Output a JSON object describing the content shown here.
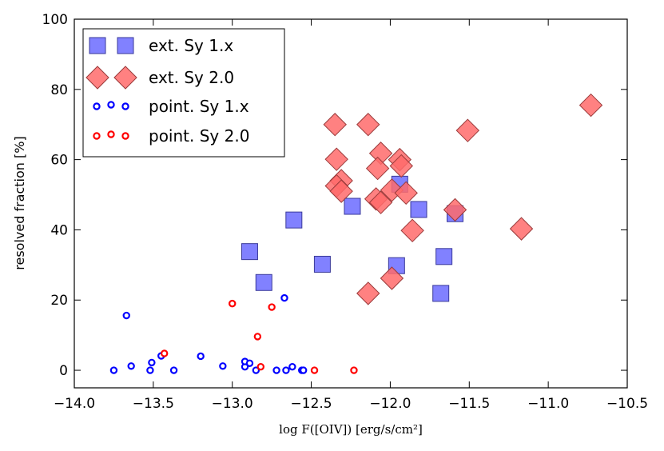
{
  "chart_data": {
    "type": "scatter",
    "xlabel": "log F([OIV]) [erg/s/cm²]",
    "ylabel": "resolved fraction [%]",
    "xlim": [
      -14.0,
      -10.5
    ],
    "ylim": [
      -5,
      100
    ],
    "xticks": [
      -14.0,
      -13.5,
      -13.0,
      -12.5,
      -12.0,
      -11.5,
      -11.0,
      -10.5
    ],
    "xtick_labels": [
      "−14.0",
      "−13.5",
      "−13.0",
      "−12.5",
      "−12.0",
      "−11.5",
      "−11.0",
      "−10.5"
    ],
    "yticks": [
      0,
      20,
      40,
      60,
      80,
      100
    ],
    "ytick_labels": [
      "0",
      "20",
      "40",
      "60",
      "80",
      "100"
    ],
    "legend_position": "top-left",
    "series": [
      {
        "name": "ext. Sy 1.x",
        "marker": "square",
        "color": "#6b6bff",
        "edge": "#3a3a9a",
        "points": [
          [
            -12.89,
            33.8
          ],
          [
            -12.8,
            25.0
          ],
          [
            -12.61,
            42.8
          ],
          [
            -12.43,
            30.2
          ],
          [
            -12.24,
            46.7
          ],
          [
            -11.96,
            29.8
          ],
          [
            -11.94,
            53.0
          ],
          [
            -11.82,
            45.8
          ],
          [
            -11.66,
            32.4
          ],
          [
            -11.68,
            21.9
          ],
          [
            -11.59,
            44.6
          ]
        ]
      },
      {
        "name": "ext. Sy 2.0",
        "marker": "diamond",
        "color": "#ff6b6b",
        "edge": "#9a3a3a",
        "points": [
          [
            -12.35,
            70.0
          ],
          [
            -12.14,
            70.0
          ],
          [
            -12.34,
            60.1
          ],
          [
            -12.06,
            61.8
          ],
          [
            -12.08,
            57.5
          ],
          [
            -11.94,
            60.0
          ],
          [
            -11.93,
            58.2
          ],
          [
            -12.31,
            54.0
          ],
          [
            -12.34,
            52.5
          ],
          [
            -12.31,
            51.0
          ],
          [
            -11.99,
            51.3
          ],
          [
            -11.9,
            50.5
          ],
          [
            -12.09,
            48.8
          ],
          [
            -12.06,
            47.8
          ],
          [
            -11.86,
            39.8
          ],
          [
            -11.59,
            45.7
          ],
          [
            -11.51,
            68.3
          ],
          [
            -11.17,
            40.3
          ],
          [
            -12.14,
            21.9
          ],
          [
            -11.99,
            26.2
          ],
          [
            -10.73,
            75.5
          ]
        ]
      },
      {
        "name": "point. Sy 1.x",
        "marker": "ring",
        "color": "#0000ff",
        "points": [
          [
            -13.67,
            15.6
          ],
          [
            -13.75,
            0.0
          ],
          [
            -13.64,
            1.2
          ],
          [
            -13.52,
            0.0
          ],
          [
            -13.51,
            2.2
          ],
          [
            -13.45,
            4.1
          ],
          [
            -13.37,
            0.0
          ],
          [
            -13.2,
            4.0
          ],
          [
            -13.06,
            1.2
          ],
          [
            -12.92,
            1.0
          ],
          [
            -12.92,
            2.5
          ],
          [
            -12.89,
            2.0
          ],
          [
            -12.85,
            0.0
          ],
          [
            -12.67,
            20.6
          ],
          [
            -12.72,
            0.0
          ],
          [
            -12.66,
            0.0
          ],
          [
            -12.62,
            1.0
          ],
          [
            -12.56,
            0.0
          ],
          [
            -12.55,
            0.0
          ]
        ]
      },
      {
        "name": "point. Sy 2.0",
        "marker": "ring",
        "color": "#ff0000",
        "points": [
          [
            -13.43,
            4.8
          ],
          [
            -13.0,
            19.0
          ],
          [
            -12.84,
            9.6
          ],
          [
            -12.82,
            1.0
          ],
          [
            -12.75,
            18.0
          ],
          [
            -12.48,
            0.0
          ],
          [
            -12.23,
            0.0
          ]
        ]
      }
    ]
  }
}
